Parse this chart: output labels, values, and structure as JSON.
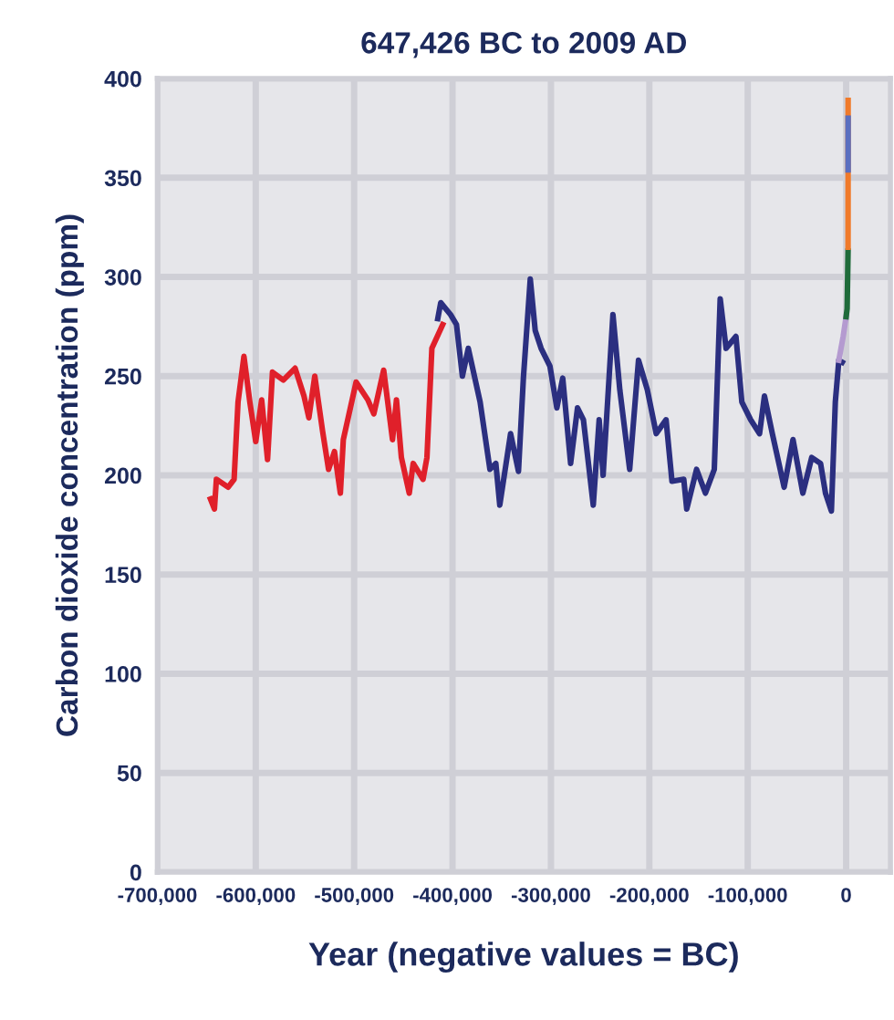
{
  "chart_data": {
    "type": "line",
    "title": "647,426 BC to 2009 AD",
    "xlabel": "Year (negative values = BC)",
    "ylabel": "Carbon dioxide concentration (ppm)",
    "xlim": [
      -700000,
      45000
    ],
    "ylim": [
      0,
      400
    ],
    "xticks": [
      {
        "value": -700000,
        "label": "-700,000"
      },
      {
        "value": -600000,
        "label": "-600,000"
      },
      {
        "value": -500000,
        "label": "-500,000"
      },
      {
        "value": -400000,
        "label": "-400,000"
      },
      {
        "value": -300000,
        "label": "-300,000"
      },
      {
        "value": -200000,
        "label": "-200,000"
      },
      {
        "value": -100000,
        "label": "-100,000"
      },
      0
    ],
    "yticks": [
      0,
      50,
      100,
      150,
      200,
      250,
      300,
      350,
      400
    ],
    "grid": true,
    "marker": "none",
    "line_style": "solid",
    "series": [
      {
        "color": "#e0202a",
        "x": [
          -646000,
          -642000,
          -640000,
          -628000,
          -622000,
          -618000,
          -612000,
          -606000,
          -600000,
          -594000,
          -588000,
          -583000,
          -572000,
          -560000,
          -551000,
          -546000,
          -540000,
          -532000,
          -526000,
          -520000,
          -514000,
          -511000,
          -498000,
          -486000,
          -480000,
          -470000,
          -461000,
          -457000,
          -452000,
          -444000,
          -440000,
          -430000,
          -426000,
          -421000,
          -410000
        ],
        "values": [
          188,
          183,
          198,
          194,
          198,
          237,
          260,
          237,
          217,
          238,
          208,
          252,
          248,
          254,
          240,
          229,
          250,
          222,
          203,
          212,
          191,
          218,
          247,
          238,
          231,
          253,
          218,
          238,
          209,
          191,
          206,
          198,
          209,
          264,
          276
        ]
      },
      {
        "color": "#2b2f80",
        "x": [
          -415000,
          -412000,
          -402000,
          -396000,
          -390000,
          -384000,
          -372000,
          -362000,
          -356000,
          -352000,
          -341000,
          -333000,
          -328000,
          -321000,
          -316000,
          -310000,
          -301000,
          -294000,
          -288000,
          -280000,
          -273000,
          -267000,
          -257000,
          -251000,
          -247000,
          -237000,
          -230000,
          -220000,
          -211000,
          -202000,
          -193000,
          -183000,
          -177000,
          -165000,
          -162000,
          -152000,
          -143000,
          -134000,
          -128000,
          -122000,
          -112000,
          -106000,
          -97000,
          -88000,
          -83000,
          -75000,
          -63000,
          -54000,
          -44000,
          -35000,
          -26000,
          -21000,
          -15000,
          -11000,
          -7400,
          -4000
        ],
        "values": [
          279,
          287,
          281,
          276,
          250,
          264,
          237,
          203,
          206,
          185,
          221,
          202,
          249,
          299,
          273,
          264,
          255,
          234,
          249,
          206,
          234,
          228,
          185,
          228,
          200,
          281,
          243,
          203,
          258,
          243,
          221,
          228,
          197,
          198,
          183,
          203,
          191,
          203,
          289,
          264,
          270,
          237,
          228,
          221,
          240,
          221,
          194,
          218,
          191,
          209,
          206,
          191,
          182,
          237,
          258,
          257
        ]
      },
      {
        "color": "#b49ad0",
        "x": [
          -7400,
          -3000,
          0
        ],
        "values": [
          258,
          270,
          280
        ]
      },
      {
        "color": "#1f6b3a",
        "x": [
          0,
          1000,
          1950
        ],
        "values": [
          280,
          284,
          313
        ]
      },
      {
        "color": "#f07a2a",
        "x": [
          1958,
          1990,
          2009
        ],
        "values": [
          315,
          354,
          389
        ]
      },
      {
        "color": "#5a6fc0",
        "x": [
          1990,
          2005
        ],
        "values": [
          354,
          380
        ]
      }
    ]
  }
}
